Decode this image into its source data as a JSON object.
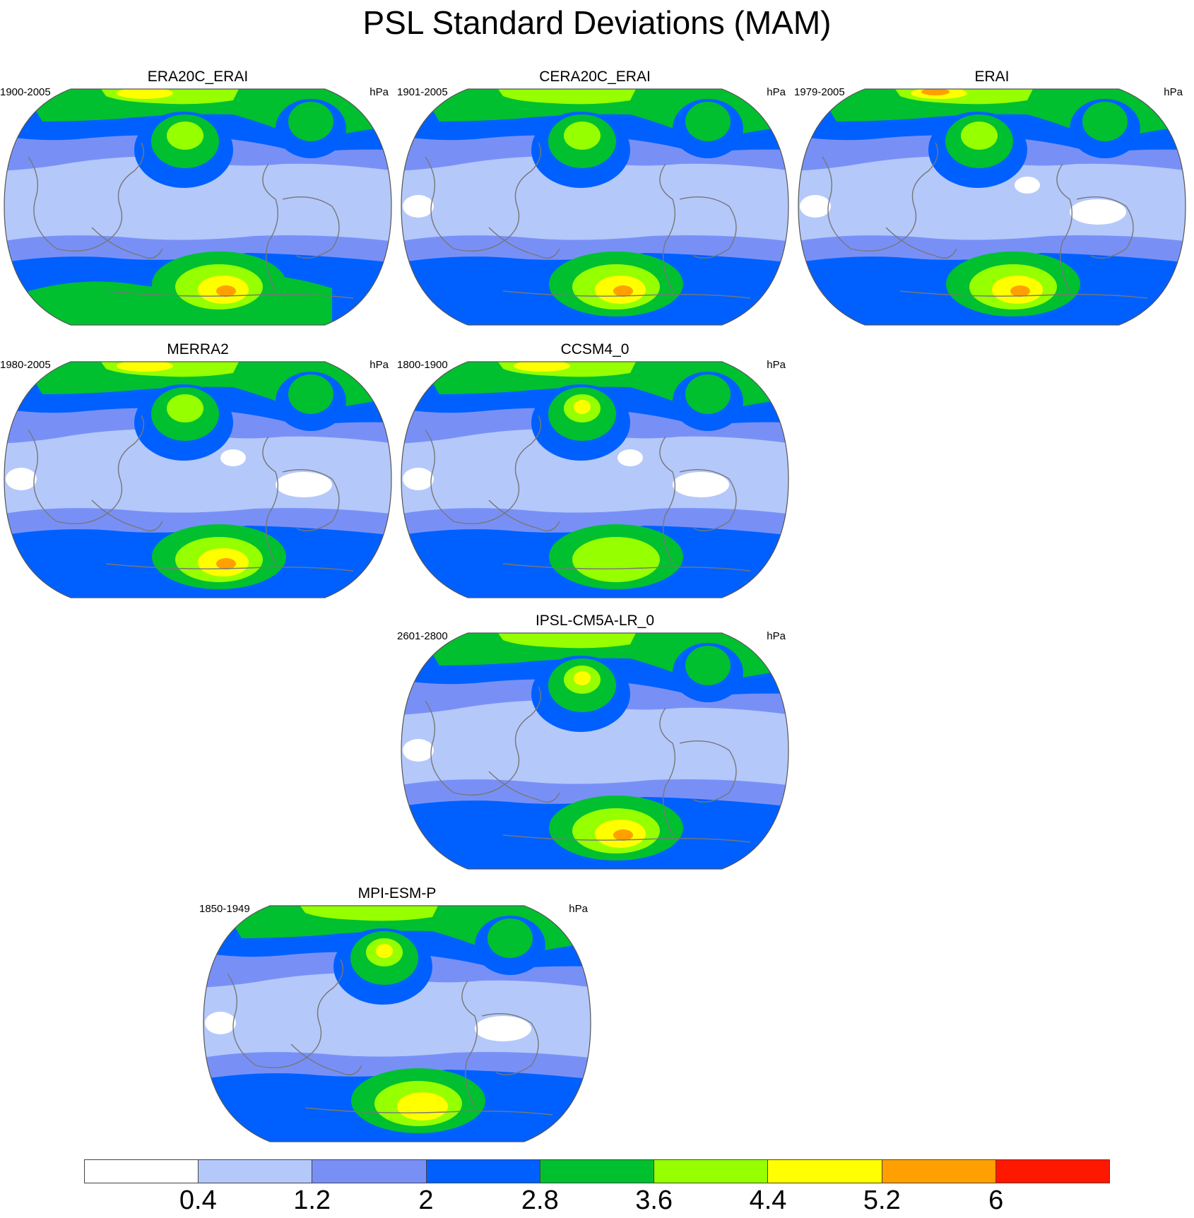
{
  "title": "PSL Standard Deviations (MAM)",
  "unit": "hPa",
  "palette": [
    "#ffffff",
    "#b4c8fa",
    "#7890f6",
    "#0060ff",
    "#00c030",
    "#96ff00",
    "#ffff00",
    "#ffa000",
    "#ff1800"
  ],
  "levels": [
    "0.4",
    "1.2",
    "2",
    "2.8",
    "3.6",
    "4.4",
    "5.2",
    "6"
  ],
  "panels": [
    {
      "name": "ERA20C_ERAI",
      "period": "1900-2005",
      "features": {
        "nh_band": 3,
        "npac": 4,
        "nh_max": 6,
        "sh_band": 4,
        "sh_core": 7,
        "white_areas": 0
      }
    },
    {
      "name": "CERA20C_ERAI",
      "period": "1901-2005",
      "features": {
        "nh_band": 3,
        "npac": 4,
        "nh_max": 5,
        "sh_band": 3,
        "sh_core": 7,
        "white_areas": 1
      }
    },
    {
      "name": "ERAI",
      "period": "1979-2005",
      "features": {
        "nh_band": 3,
        "npac": 4,
        "nh_max": 7,
        "sh_band": 3,
        "sh_core": 7,
        "white_areas": 3
      }
    },
    {
      "name": "MERRA2",
      "period": "1980-2005",
      "features": {
        "nh_band": 3,
        "npac": 4,
        "nh_max": 6,
        "sh_band": 3,
        "sh_core": 7,
        "white_areas": 3
      }
    },
    {
      "name": "CCSM4_0",
      "period": "1800-1900",
      "features": {
        "nh_band": 3,
        "npac": 5,
        "nh_max": 6,
        "sh_band": 3,
        "sh_core": 5,
        "white_areas": 3
      }
    },
    {
      "name": "IPSL-CM5A-LR_0",
      "period": "2601-2800",
      "features": {
        "nh_band": 3,
        "npac": 5,
        "nh_max": 5,
        "sh_band": 3,
        "sh_core": 7,
        "white_areas": 1
      }
    },
    {
      "name": "MPI-ESM-P",
      "period": "1850-1949",
      "features": {
        "nh_band": 3,
        "npac": 5,
        "nh_max": 5,
        "sh_band": 3,
        "sh_core": 6,
        "white_areas": 2
      }
    }
  ]
}
